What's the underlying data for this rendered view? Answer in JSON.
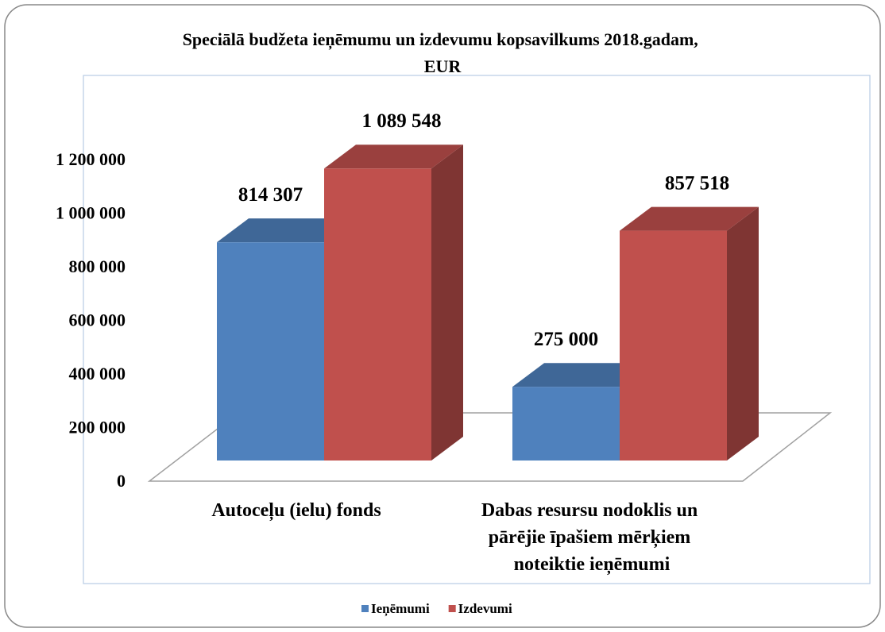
{
  "chart_data": {
    "type": "bar3d",
    "title": "Speciālā budžeta ieņēmumu un izdevumu kopsavilkums 2018.gadam, EUR",
    "categories": [
      "Autoceļu (ielu) fonds",
      "Dabas resursu nodoklis un pārējie īpašiem mērķiem noteiktie ieņēmumi"
    ],
    "series": [
      {
        "name": "Ieņēmumi",
        "color": "#4f81bd",
        "values": [
          814307,
          275000
        ],
        "value_labels": [
          "814 307",
          "275 000"
        ]
      },
      {
        "name": "Izdevumi",
        "color": "#c0504d",
        "values": [
          1089548,
          857518
        ],
        "value_labels": [
          "1 089 548",
          "857 518"
        ]
      }
    ],
    "ylim": [
      0,
      1200000
    ],
    "yticks": [
      0,
      {
        "value": 200000,
        "label": "200 000"
      },
      {
        "value": 400000,
        "label": "400 000"
      },
      {
        "value": 600000,
        "label": "600 000"
      },
      {
        "value": 800000,
        "label": "800 000"
      },
      {
        "value": 1000000,
        "label": "1 000 000"
      },
      {
        "value": 1200000,
        "label": "1 200 000"
      }
    ],
    "legend": "bottom"
  }
}
